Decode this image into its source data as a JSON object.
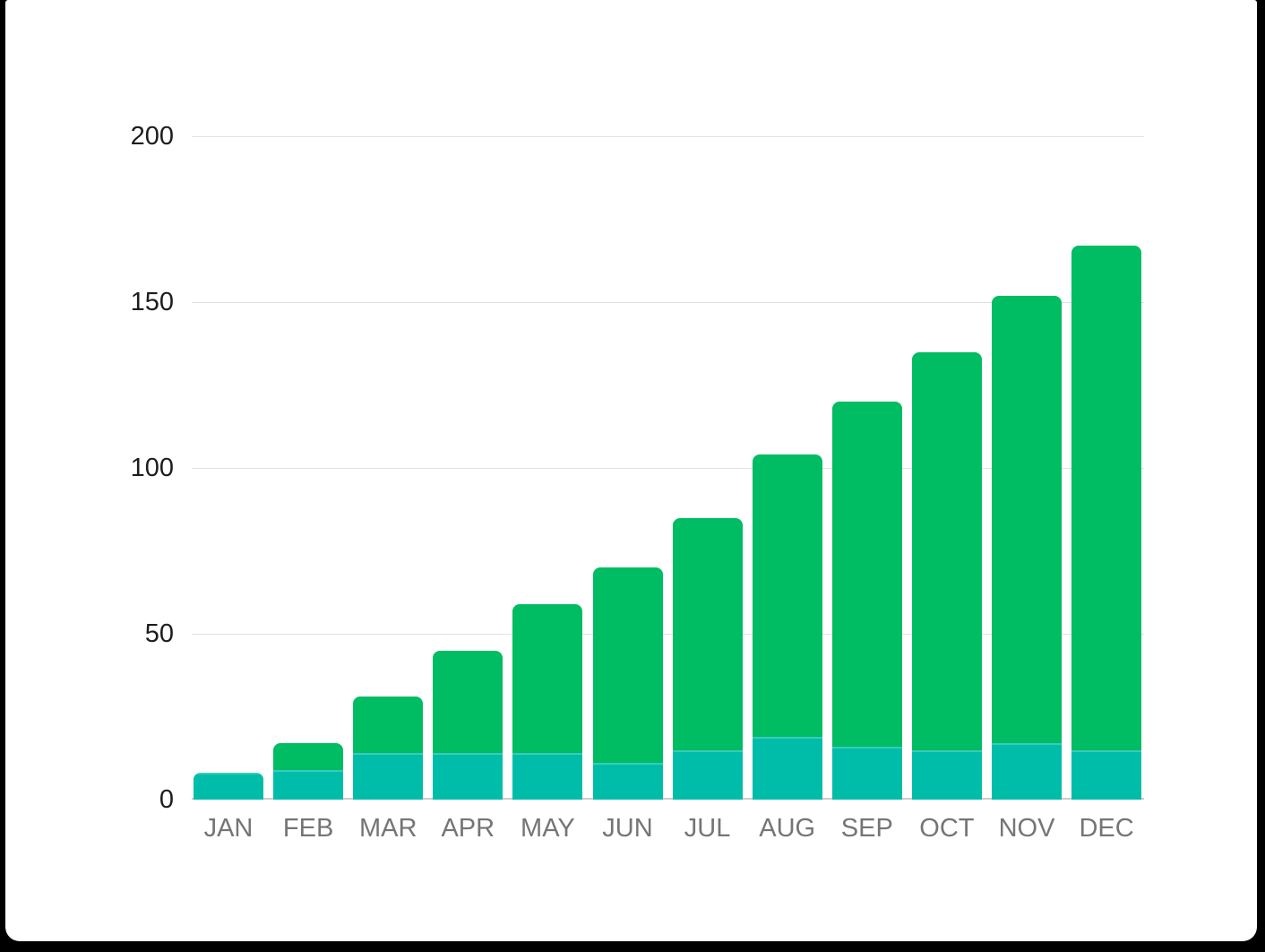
{
  "chart_data": {
    "type": "bar",
    "stacked": true,
    "title": "",
    "xlabel": "",
    "ylabel": "",
    "legend": "none",
    "grid": "horizontal",
    "ylim": [
      0,
      200
    ],
    "yticks": [
      0,
      50,
      100,
      150,
      200
    ],
    "categories": [
      "JAN",
      "FEB",
      "MAR",
      "APR",
      "MAY",
      "JUN",
      "JUL",
      "AUG",
      "SEP",
      "OCT",
      "NOV",
      "DEC"
    ],
    "series": [
      {
        "name": "bottom-teal-segment",
        "color": "#00BDA9",
        "values": [
          8,
          9,
          14,
          14,
          14,
          11,
          15,
          19,
          16,
          15,
          17,
          15
        ]
      },
      {
        "name": "top-green-segment",
        "color": "#00BC63",
        "values": [
          0,
          8,
          17,
          31,
          45,
          59,
          70,
          85,
          104,
          120,
          135,
          152
        ]
      }
    ],
    "totals": [
      8,
      17,
      31,
      45,
      59,
      70,
      85,
      104,
      120,
      135,
      152,
      167
    ]
  },
  "colors": {
    "page_background": "#000000",
    "card_background": "#ffffff",
    "gridline": "#e2e2e2",
    "axis_baseline": "#cccccc",
    "y_tick_label": "#1d1d1d",
    "x_axis_label": "#757575",
    "series_teal": "#00BDA9",
    "series_green": "#00BC63"
  }
}
